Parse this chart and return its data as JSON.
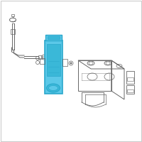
{
  "bg_color": "#ffffff",
  "border_color": "#cccccc",
  "highlight_color": "#2aa8cc",
  "highlight_fill": "#5bc8e8",
  "line_color": "#777777",
  "dark_line": "#666666",
  "fig_width": 2.0,
  "fig_height": 2.0,
  "dpi": 100
}
